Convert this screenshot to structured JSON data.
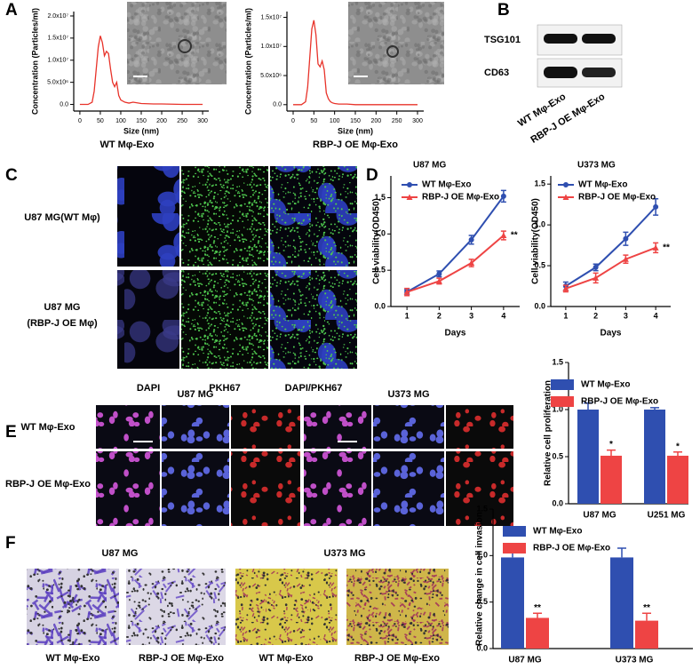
{
  "panel_labels": [
    "A",
    "B",
    "C",
    "D",
    "E",
    "F"
  ],
  "B": {
    "bands": [
      "TSG101",
      "CD63"
    ],
    "lanes": [
      "WT Mφ-Exo",
      "RBP-J OE Mφ-Exo"
    ]
  },
  "C": {
    "rows": [
      [
        "U87 MG(WT Mφ)"
      ],
      [
        "U87 MG",
        "(RBP-J OE Mφ)"
      ]
    ],
    "columns": [
      "DAPI",
      "PKH67",
      "DAPI/PKH67"
    ]
  },
  "E": {
    "groups": [
      "U87 MG",
      "U373 MG"
    ],
    "rows": [
      "WT Mφ-Exo",
      "RBP-J OE Mφ-Exo"
    ]
  },
  "F": {
    "groups": [
      "U87 MG",
      "U373 MG"
    ],
    "captions": [
      "WT Mφ-Exo",
      "RBP-J OE Mφ-Exo",
      "WT Mφ-Exo",
      "RBP-J OE Mφ-Exo"
    ]
  },
  "chart_data": [
    {
      "type": "line",
      "caption": "WT Mφ-Exo",
      "xlabel": "Size (nm)",
      "ylabel": "Concentration (Particles/ml)",
      "x": [
        0,
        20,
        30,
        35,
        40,
        45,
        50,
        55,
        60,
        65,
        70,
        75,
        80,
        85,
        90,
        95,
        100,
        110,
        120,
        130,
        150,
        180,
        200,
        250,
        300
      ],
      "series": [
        {
          "color": "#e8332a",
          "values": [
            0,
            0,
            500000,
            3000000,
            8000000,
            13000000,
            15500000,
            14000000,
            11000000,
            12000000,
            11500000,
            8000000,
            5000000,
            4000000,
            5000000,
            2000000,
            1000000,
            500000,
            300000,
            500000,
            200000,
            100000,
            100000,
            0,
            0
          ]
        }
      ],
      "xlim": [
        -15,
        315
      ],
      "xticks": [
        0,
        50,
        100,
        150,
        200,
        250,
        300
      ],
      "ylim": [
        -1500000,
        21000000
      ],
      "yticks": [
        {
          "value": 0,
          "label": "0.0"
        },
        {
          "value": 5000000,
          "label": "5.0x10⁶"
        },
        {
          "value": 10000000,
          "label": "1.0x10⁷"
        },
        {
          "value": 15000000,
          "label": "1.5x10⁷"
        },
        {
          "value": 20000000,
          "label": "2.0x10⁷"
        }
      ]
    },
    {
      "type": "line",
      "caption": "RBP-J OE Mφ-Exo",
      "xlabel": "Size (nm)",
      "ylabel": "Concentration (Particles/ml)",
      "x": [
        0,
        20,
        30,
        35,
        40,
        45,
        50,
        55,
        60,
        65,
        70,
        75,
        80,
        85,
        90,
        95,
        100,
        110,
        120,
        130,
        150,
        180,
        200,
        250,
        300
      ],
      "series": [
        {
          "color": "#e8332a",
          "values": [
            0,
            0,
            500000,
            3000000,
            8000000,
            13000000,
            14500000,
            12000000,
            7000000,
            6500000,
            7500000,
            6000000,
            2000000,
            1000000,
            500000,
            300000,
            200000,
            100000,
            100000,
            100000,
            0,
            0,
            0,
            0,
            0
          ]
        }
      ],
      "xlim": [
        -15,
        315
      ],
      "xticks": [
        0,
        50,
        100,
        150,
        200,
        250,
        300
      ],
      "ylim": [
        -1100000,
        16000000
      ],
      "yticks": [
        {
          "value": 0,
          "label": "0.0"
        },
        {
          "value": 5000000,
          "label": "5.0x10⁶"
        },
        {
          "value": 10000000,
          "label": "1.0x10⁷"
        },
        {
          "value": 15000000,
          "label": "1.5x10⁷"
        }
      ]
    },
    {
      "type": "line",
      "title": "U87 MG",
      "xlabel": "Days",
      "ylabel": "Cell viability(OD450)",
      "legend": true,
      "x": [
        1,
        2,
        3,
        4
      ],
      "series": [
        {
          "name": "WT Mφ-Exo",
          "color": "#2f4fb0",
          "marker": "circle",
          "values": [
            0.2,
            0.45,
            0.92,
            1.52
          ],
          "errors": [
            0.03,
            0.04,
            0.06,
            0.08
          ]
        },
        {
          "name": "RBP-J OE Mφ-Exo",
          "color": "#ee4444",
          "marker": "triangle",
          "values": [
            0.2,
            0.35,
            0.6,
            0.98
          ],
          "errors": [
            0.05,
            0.04,
            0.05,
            0.06
          ]
        }
      ],
      "annotations": [
        "**"
      ],
      "xlim": [
        0.5,
        4.5
      ],
      "xticks": [
        1,
        2,
        3,
        4
      ],
      "ylim": [
        0,
        1.8
      ],
      "yticks": [
        {
          "value": 0,
          "label": "0.0"
        },
        0.5,
        {
          "value": 1,
          "label": "1.0"
        },
        1.5
      ]
    },
    {
      "type": "line",
      "title": "U373 MG",
      "xlabel": "Days",
      "ylabel": "Cell viability(OD450)",
      "legend": true,
      "x": [
        1,
        2,
        3,
        4
      ],
      "series": [
        {
          "name": "WT Mφ-Exo",
          "color": "#2f4fb0",
          "marker": "circle",
          "values": [
            0.25,
            0.48,
            0.83,
            1.22
          ],
          "errors": [
            0.05,
            0.04,
            0.08,
            0.1
          ]
        },
        {
          "name": "RBP-J OE Mφ-Exo",
          "color": "#ee4444",
          "marker": "triangle",
          "values": [
            0.22,
            0.35,
            0.58,
            0.72
          ],
          "errors": [
            0.04,
            0.06,
            0.05,
            0.06
          ]
        }
      ],
      "annotations": [
        "**"
      ],
      "xlim": [
        0.5,
        4.5
      ],
      "xticks": [
        1,
        2,
        3,
        4
      ],
      "ylim": [
        0,
        1.6
      ],
      "yticks": [
        {
          "value": 0,
          "label": "0.0"
        },
        0.5,
        {
          "value": 1,
          "label": "1.0"
        },
        1.5
      ]
    },
    {
      "type": "bar",
      "ylabel": "Relative cell proliferation",
      "legend": true,
      "categories": [
        "U87 MG",
        "U251 MG"
      ],
      "series": [
        {
          "name": "WT Mφ-Exo",
          "color": "#2f4fb0",
          "values": [
            1.0,
            1.0
          ],
          "errors": [
            0.07,
            0.02
          ]
        },
        {
          "name": "RBP-J OE Mφ-Exo",
          "color": "#ee4444",
          "values": [
            0.51,
            0.51
          ],
          "errors": [
            0.06,
            0.04
          ]
        }
      ],
      "annotations": [
        "*",
        "*"
      ],
      "ylim": [
        0,
        1.5
      ],
      "yticks": [
        {
          "value": 0,
          "label": "0.0"
        },
        0.5,
        {
          "value": 1,
          "label": "1.0"
        },
        1.5
      ]
    },
    {
      "type": "bar",
      "ylabel": "Relative change in cell invasion",
      "legend": true,
      "categories": [
        "U87 MG",
        "U373 MG"
      ],
      "series": [
        {
          "name": "WT Mφ-Exo",
          "color": "#2f4fb0",
          "values": [
            0.98,
            0.98
          ],
          "errors": [
            0.15,
            0.1
          ]
        },
        {
          "name": "RBP-J OE Mφ-Exo",
          "color": "#ee4444",
          "values": [
            0.33,
            0.3
          ],
          "errors": [
            0.05,
            0.08
          ]
        }
      ],
      "annotations": [
        "**",
        "**"
      ],
      "ylim": [
        0,
        1.5
      ],
      "yticks": [
        {
          "value": 0,
          "label": "0.0"
        },
        0.5,
        {
          "value": 1,
          "label": "1.0"
        },
        1.5
      ]
    }
  ]
}
